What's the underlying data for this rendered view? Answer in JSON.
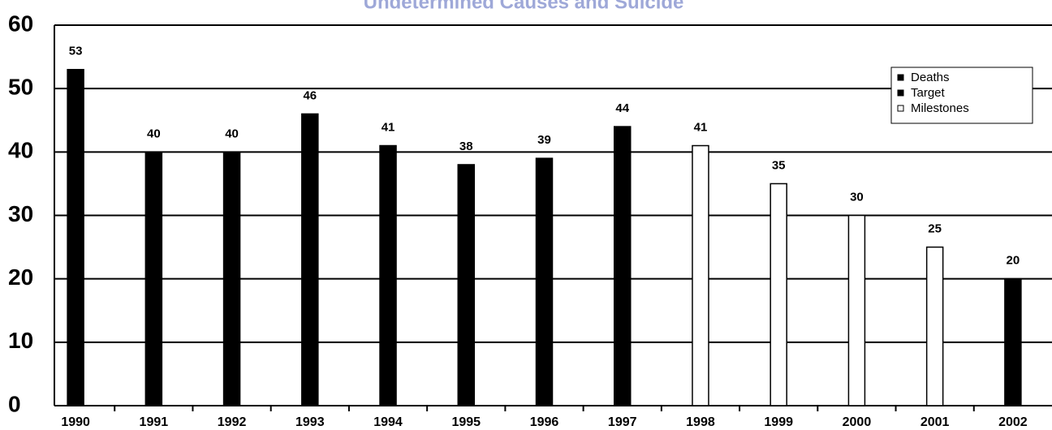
{
  "chart_data": {
    "type": "bar",
    "title": "Undetermined Causes and Suicide",
    "categories": [
      "1990",
      "1991",
      "1992",
      "1993",
      "1994",
      "1995",
      "1996",
      "1997",
      "1998",
      "1999",
      "2000",
      "2001",
      "2002"
    ],
    "series": [
      {
        "name": "Deaths",
        "color": "#000000",
        "values": [
          53,
          40,
          40,
          46,
          41,
          38,
          39,
          44,
          null,
          null,
          null,
          null,
          null
        ]
      },
      {
        "name": "Target",
        "color": "#000000",
        "values": [
          null,
          null,
          null,
          null,
          null,
          null,
          null,
          null,
          null,
          null,
          null,
          null,
          20
        ]
      },
      {
        "name": "Milestones",
        "color": "#ffffff",
        "values": [
          null,
          null,
          null,
          null,
          null,
          null,
          null,
          null,
          41,
          35,
          30,
          25,
          null
        ]
      }
    ],
    "ylim": [
      0,
      60
    ],
    "yticks": [
      0,
      10,
      20,
      30,
      40,
      50,
      60
    ],
    "grid": true,
    "legend": "upper right"
  }
}
